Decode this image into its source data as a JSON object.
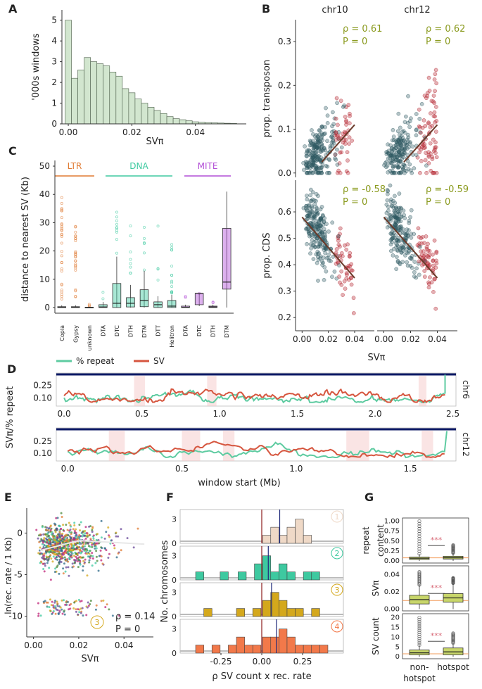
{
  "panel_letters": {
    "A": "A",
    "B": "B",
    "C": "C",
    "D": "D",
    "E": "E",
    "F": "F",
    "G": "G"
  },
  "chart_data": [
    {
      "id": "A",
      "type": "bar",
      "xlabel": "SVπ",
      "ylabel": "'000s windows",
      "ylim": [
        0,
        5.5
      ],
      "xlim": [
        -0.002,
        0.056
      ],
      "xticks": [
        0.0,
        0.02,
        0.04
      ],
      "xtick_labels": [
        "0.00",
        "0.02",
        "0.04"
      ],
      "yticks": [
        0,
        1,
        2,
        3,
        4,
        5
      ],
      "ytick_labels": [
        "0",
        "1",
        "2",
        "3",
        "4",
        "5"
      ],
      "bin_width": 0.002,
      "bin_starts": [
        -0.001,
        0.001,
        0.003,
        0.005,
        0.007,
        0.009,
        0.011,
        0.013,
        0.015,
        0.017,
        0.019,
        0.021,
        0.023,
        0.025,
        0.027,
        0.029,
        0.031,
        0.033,
        0.035,
        0.037,
        0.039,
        0.041,
        0.043,
        0.045,
        0.047,
        0.049,
        0.051
      ],
      "values": [
        5.0,
        2.2,
        2.6,
        3.2,
        3.0,
        2.9,
        2.8,
        2.5,
        2.3,
        1.7,
        1.5,
        1.2,
        1.0,
        0.8,
        0.65,
        0.5,
        0.35,
        0.25,
        0.2,
        0.15,
        0.1,
        0.08,
        0.06,
        0.05,
        0.04,
        0.03,
        0.02
      ],
      "colors": {
        "fill": "#d2e6cf",
        "stroke": "#5c6e5a"
      }
    },
    {
      "id": "B",
      "type": "scatter",
      "xlabel": "SVπ",
      "facet_cols": [
        "chr10",
        "chr12"
      ],
      "rows": [
        {
          "ylabel": "prop. transposon",
          "yticks": [
            0.0,
            0.1,
            0.2,
            0.3
          ],
          "ytick_labels": [
            "0.0",
            "0.1",
            "0.2",
            "0.3"
          ],
          "ylim": [
            -0.01,
            0.35
          ],
          "stats": [
            {
              "rho": "ρ = 0.61",
              "p": "P = 0"
            },
            {
              "rho": "ρ = 0.62",
              "p": "P = 0"
            }
          ]
        },
        {
          "ylabel": "prop. CDS",
          "yticks": [
            0.2,
            0.3,
            0.4,
            0.5,
            0.6
          ],
          "ytick_labels": [
            "0.2",
            "0.3",
            "0.4",
            "0.5",
            "0.6"
          ],
          "ylim": [
            0.15,
            0.72
          ],
          "stats": [
            {
              "rho": "ρ = -0.58",
              "p": "P = 0"
            },
            {
              "rho": "ρ = -0.59",
              "p": "P = 0"
            }
          ]
        }
      ],
      "xticks": [
        0.0,
        0.02,
        0.04
      ],
      "xtick_labels": [
        "0.00",
        "0.02",
        "0.04"
      ],
      "colors": {
        "background": "#2f5a62",
        "hotspot": "#b3202a",
        "fit": "#6b3a2a",
        "stat": "#8a9a1e"
      }
    },
    {
      "id": "C",
      "type": "box",
      "ylabel": "distance to nearest SV (Kb)",
      "ylim": [
        -2,
        52
      ],
      "yticks": [
        0,
        10,
        20,
        30,
        40,
        50
      ],
      "ytick_labels": [
        "0",
        "10",
        "20",
        "30",
        "40",
        "50"
      ],
      "groups": [
        {
          "name": "LTR",
          "color": "#e07a32"
        },
        {
          "name": "DNA",
          "color": "#3ec9a0"
        },
        {
          "name": "MITE",
          "color": "#b24fd6"
        }
      ],
      "categories": [
        "Copia",
        "Gypsy",
        "unknown",
        "DTA",
        "DTC",
        "DTH",
        "DTM",
        "DTT",
        "Helitron",
        "DTA",
        "DTC",
        "DTH",
        "DTM"
      ],
      "group_of": [
        0,
        0,
        0,
        1,
        1,
        1,
        1,
        1,
        1,
        2,
        2,
        2,
        2
      ],
      "boxes": [
        {
          "q1": 0,
          "med": 0.1,
          "q3": 0.3,
          "lo": 0,
          "hi": 0.8
        },
        {
          "q1": 0,
          "med": 0.1,
          "q3": 0.3,
          "lo": 0,
          "hi": 0.8
        },
        {
          "q1": 0,
          "med": 0,
          "q3": 0.1,
          "lo": 0,
          "hi": 0.3
        },
        {
          "q1": 0,
          "med": 0.2,
          "q3": 1,
          "lo": 0,
          "hi": 2
        },
        {
          "q1": 0,
          "med": 1.5,
          "q3": 8.5,
          "lo": 0,
          "hi": 18
        },
        {
          "q1": 0.2,
          "med": 1.5,
          "q3": 3.5,
          "lo": 0,
          "hi": 8
        },
        {
          "q1": 0.3,
          "med": 2.5,
          "q3": 6.3,
          "lo": 0,
          "hi": 13
        },
        {
          "q1": 0,
          "med": 1,
          "q3": 2,
          "lo": 0,
          "hi": 4
        },
        {
          "q1": 0,
          "med": 0.5,
          "q3": 2.5,
          "lo": 0,
          "hi": 4.5
        },
        {
          "q1": 0,
          "med": 0.1,
          "q3": 0.5,
          "lo": 0,
          "hi": 1
        },
        {
          "q1": 1,
          "med": 5,
          "q3": 5,
          "lo": 0.5,
          "hi": 5
        },
        {
          "q1": 0,
          "med": 0.2,
          "q3": 0.5,
          "lo": 0,
          "hi": 1
        },
        {
          "q1": 6.5,
          "med": 9,
          "q3": 28,
          "lo": 0,
          "hi": 41
        }
      ]
    },
    {
      "id": "D",
      "type": "line",
      "xlabel": "window start (Mb)",
      "ylabel": "SVπ/% repeat",
      "legend": [
        {
          "name": "% repeat",
          "color": "#5ecba1"
        },
        {
          "name": "SV",
          "color": "#d6563f"
        }
      ],
      "facets": [
        {
          "name": "chr6",
          "xlim": [
            -0.05,
            2.52
          ],
          "xticks": [
            0.0,
            0.5,
            1.0,
            1.5,
            2.0,
            2.5
          ],
          "xtick_labels": [
            "0.0",
            "0.5",
            "1.0",
            "1.5",
            "2.0",
            "2.5"
          ],
          "yticks": [
            0.1,
            0.25
          ],
          "ytick_labels": [
            "0.10",
            "0.25"
          ],
          "ylim": [
            0.0,
            0.4
          ]
        },
        {
          "name": "chr12",
          "xlim": [
            -0.05,
            1.7
          ],
          "xticks": [
            0.0,
            0.5,
            1.0,
            1.5
          ],
          "xtick_labels": [
            "0.0",
            "0.5",
            "1.0",
            "1.5"
          ],
          "yticks": [
            0.1,
            0.25
          ],
          "ytick_labels": [
            "0.10",
            "0.25"
          ],
          "ylim": [
            0.0,
            0.42
          ]
        }
      ]
    },
    {
      "id": "E",
      "type": "scatter",
      "xlabel": "SVπ",
      "ylabel": "ln(rec. rate / 1 Kb)",
      "xlim": [
        -0.003,
        0.053
      ],
      "ylim": [
        -12.5,
        3
      ],
      "xticks": [
        0.0,
        0.02,
        0.04
      ],
      "xtick_labels": [
        "0.00",
        "0.02",
        "0.04"
      ],
      "yticks": [
        -10,
        -5,
        0
      ],
      "ytick_labels": [
        "-10",
        "-5",
        "0"
      ],
      "stat_rho": "ρ = 0.14",
      "stat_p": "P = 0",
      "badge": "3"
    },
    {
      "id": "F",
      "type": "bar",
      "xlabel": "ρ SV count x rec. rate",
      "ylabel": "No. chromosomes",
      "xlim": [
        -0.5,
        0.5
      ],
      "xticks": [
        -0.25,
        0.0,
        0.25
      ],
      "xtick_labels": [
        "-0.25",
        "0.00",
        "0.25"
      ],
      "bin_width": 0.05,
      "panels": [
        {
          "badge": "1",
          "color": "#efd9c7",
          "mean": 0.11,
          "bins": [
            0.03,
            0.08,
            0.13,
            0.18,
            0.23,
            0.28
          ],
          "values": [
            1,
            2,
            1,
            2,
            3,
            1
          ]
        },
        {
          "badge": "2",
          "color": "#3ec9a0",
          "mean": 0.04,
          "bins": [
            -0.38,
            -0.23,
            -0.12,
            -0.02,
            0.03,
            0.08,
            0.13,
            0.18,
            0.28,
            0.33
          ],
          "values": [
            1,
            1,
            1,
            2,
            3,
            1,
            2,
            1,
            1,
            1
          ]
        },
        {
          "badge": "3",
          "color": "#d4a81c",
          "mean": 0.06,
          "bins": [
            -0.33,
            -0.13,
            -0.03,
            0.03,
            0.08,
            0.13,
            0.18,
            0.23,
            0.33
          ],
          "values": [
            1,
            1,
            1,
            2,
            3,
            2,
            1,
            1,
            1
          ]
        },
        {
          "badge": "4",
          "color": "#f2794a",
          "mean": 0.09,
          "bins": [
            -0.38,
            -0.28,
            -0.18,
            -0.13,
            -0.08,
            -0.03,
            0.03,
            0.08,
            0.13,
            0.18,
            0.23,
            0.28,
            0.33,
            0.38
          ],
          "values": [
            1,
            1,
            1,
            2,
            1,
            1,
            2,
            2,
            3,
            2,
            1,
            1,
            1,
            1
          ]
        }
      ],
      "yticks": [
        0,
        3
      ],
      "ytick_labels": [
        "0",
        "3"
      ]
    },
    {
      "id": "G",
      "type": "box",
      "categories": [
        "non-\nhotspot",
        "hotspot"
      ],
      "category_labels": [
        "non-",
        "hotspot",
        "hotspot"
      ],
      "significance": "***",
      "rows": [
        {
          "ylabel": "repeat content",
          "yticks": [
            0.0,
            0.25,
            0.5,
            0.75,
            1.0
          ],
          "ytick_labels": [
            "0.00",
            "0.25",
            "0.50",
            "0.75",
            "1.00"
          ],
          "ylim": [
            -0.05,
            1.08
          ],
          "ref": 0.08,
          "boxes": [
            {
              "q1": 0.04,
              "med": 0.07,
              "q3": 0.1,
              "lo": 0.0,
              "hi": 0.18,
              "outhi": 1.0
            },
            {
              "q1": 0.05,
              "med": 0.08,
              "q3": 0.12,
              "lo": 0.0,
              "hi": 0.2,
              "outhi": 0.4
            }
          ]
        },
        {
          "ylabel": "SVπ",
          "yticks": [
            0.0,
            0.02,
            0.04
          ],
          "ytick_labels": [
            "0.00",
            "0.02",
            "0.04"
          ],
          "ylim": [
            -0.002,
            0.05
          ],
          "ref": 0.01,
          "boxes": [
            {
              "q1": 0.006,
              "med": 0.011,
              "q3": 0.016,
              "lo": 0.0,
              "hi": 0.028,
              "outhi": 0.043
            },
            {
              "q1": 0.008,
              "med": 0.013,
              "q3": 0.018,
              "lo": 0.0,
              "hi": 0.03,
              "outhi": 0.036
            }
          ]
        },
        {
          "ylabel": "SV count",
          "yticks": [
            0,
            5,
            10,
            15,
            20
          ],
          "ytick_labels": [
            "0",
            "5",
            "10",
            "15",
            "20"
          ],
          "ylim": [
            -1,
            22
          ],
          "ref": 1.5,
          "boxes": [
            {
              "q1": 1,
              "med": 2,
              "q3": 3.5,
              "lo": 0,
              "hi": 6,
              "outhi": 20
            },
            {
              "q1": 1,
              "med": 2.5,
              "q3": 4.5,
              "lo": 0,
              "hi": 7,
              "outhi": 12
            }
          ]
        }
      ],
      "colors": {
        "fill": "#c8d66a",
        "stroke": "#333333",
        "ref": "#f29b5a",
        "sig": "#d86a78"
      }
    }
  ]
}
